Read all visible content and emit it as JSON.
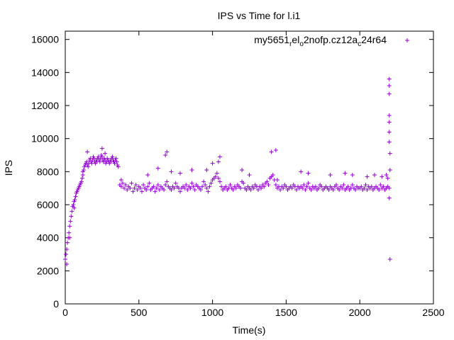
{
  "chart_data": {
    "type": "scatter",
    "title": "IPS vs Time for l.i1",
    "xlabel": "Time(s)",
    "ylabel": "IPS",
    "xlim": [
      0,
      2500
    ],
    "ylim": [
      0,
      16500
    ],
    "xticks": [
      0,
      500,
      1000,
      1500,
      2000,
      2500
    ],
    "yticks": [
      0,
      2000,
      4000,
      6000,
      8000,
      10000,
      12000,
      14000,
      16000
    ],
    "xtick_labels": [
      "0",
      "500",
      "1000",
      "1500",
      "2000",
      "2500"
    ],
    "ytick_labels": [
      "0",
      "2000",
      "4000",
      "6000",
      "8000",
      "10000",
      "12000",
      "14000",
      "16000"
    ],
    "grid": false,
    "legend_position": "top-right",
    "marker": "+",
    "series": [
      {
        "name": "my5651_rel_o2nofp.cz12a_c24r64",
        "legend_parts": [
          "my5651",
          "r",
          "el",
          "o",
          "2nofp.cz12a",
          "c",
          "24r64"
        ],
        "color": "#9400d3",
        "x": [
          0,
          5,
          10,
          15,
          20,
          25,
          30,
          35,
          40,
          45,
          50,
          55,
          60,
          65,
          70,
          75,
          80,
          85,
          90,
          95,
          100,
          105,
          110,
          115,
          120,
          125,
          130,
          135,
          140,
          145,
          150,
          155,
          160,
          165,
          170,
          175,
          180,
          185,
          190,
          195,
          200,
          205,
          210,
          215,
          220,
          225,
          230,
          235,
          240,
          245,
          250,
          255,
          260,
          265,
          270,
          275,
          280,
          285,
          290,
          295,
          300,
          305,
          310,
          315,
          320,
          325,
          330,
          335,
          340,
          345,
          350,
          355,
          360,
          370,
          380,
          390,
          400,
          410,
          420,
          430,
          440,
          450,
          460,
          470,
          480,
          490,
          500,
          510,
          520,
          530,
          540,
          550,
          560,
          570,
          580,
          590,
          600,
          610,
          620,
          630,
          640,
          650,
          660,
          670,
          680,
          690,
          700,
          710,
          720,
          730,
          740,
          750,
          760,
          770,
          780,
          790,
          800,
          810,
          820,
          830,
          840,
          850,
          860,
          870,
          880,
          890,
          900,
          910,
          920,
          930,
          940,
          950,
          960,
          970,
          980,
          990,
          1000,
          1010,
          1020,
          1030,
          1040,
          1050,
          1060,
          1070,
          1080,
          1090,
          1100,
          1110,
          1120,
          1130,
          1140,
          1150,
          1160,
          1170,
          1180,
          1190,
          1200,
          1210,
          1220,
          1230,
          1240,
          1250,
          1260,
          1270,
          1280,
          1290,
          1300,
          1310,
          1320,
          1330,
          1340,
          1350,
          1360,
          1370,
          1380,
          1390,
          1400,
          1410,
          1420,
          1430,
          1440,
          1450,
          1460,
          1470,
          1480,
          1490,
          1500,
          1510,
          1520,
          1530,
          1540,
          1550,
          1560,
          1570,
          1580,
          1590,
          1600,
          1610,
          1620,
          1630,
          1640,
          1650,
          1660,
          1670,
          1680,
          1690,
          1700,
          1710,
          1720,
          1730,
          1740,
          1750,
          1760,
          1770,
          1780,
          1790,
          1800,
          1810,
          1820,
          1830,
          1840,
          1850,
          1860,
          1870,
          1880,
          1890,
          1900,
          1910,
          1920,
          1930,
          1940,
          1950,
          1960,
          1970,
          1980,
          1990,
          2000,
          2010,
          2020,
          2030,
          2040,
          2050,
          2060,
          2070,
          2080,
          2090,
          2100,
          2110,
          2120,
          2130,
          2140,
          2150,
          2160,
          2170,
          2180,
          2190,
          2200,
          10,
          30,
          60,
          120,
          150,
          250,
          270,
          380,
          560,
          630,
          680,
          690,
          720,
          780,
          860,
          960,
          1000,
          1040,
          1050,
          1200,
          1250,
          1400,
          1430,
          1440,
          1600,
          1650,
          1800,
          1900,
          1950,
          2050,
          2100,
          2150,
          2180,
          2190,
          2200,
          2200,
          2200,
          2200,
          2200,
          2200,
          2200,
          2200,
          2205,
          2205,
          2205
        ],
        "y": [
          2700,
          3000,
          3300,
          3700,
          4000,
          4300,
          4700,
          5000,
          5300,
          5600,
          5900,
          6000,
          6200,
          6300,
          6500,
          6700,
          6800,
          6900,
          7000,
          7100,
          7200,
          7300,
          7400,
          7600,
          7800,
          8100,
          8300,
          8400,
          8500,
          8600,
          8400,
          8300,
          8500,
          8700,
          8800,
          8600,
          8500,
          8700,
          8900,
          8800,
          8600,
          8500,
          8700,
          8600,
          8800,
          8900,
          8700,
          8600,
          8800,
          9000,
          8900,
          8700,
          8600,
          8800,
          8700,
          8500,
          8600,
          8800,
          8700,
          8600,
          8500,
          8700,
          8600,
          8800,
          8900,
          8700,
          8600,
          8500,
          8700,
          8800,
          8600,
          8400,
          8300,
          7200,
          7100,
          7300,
          7000,
          7200,
          6900,
          7100,
          7000,
          7300,
          6800,
          7000,
          7200,
          6900,
          7100,
          7000,
          6800,
          7200,
          7000,
          6900,
          7100,
          7300,
          6900,
          7000,
          7100,
          6800,
          7000,
          7200,
          6900,
          7100,
          7000,
          6900,
          7200,
          7400,
          7100,
          7000,
          6900,
          7100,
          7000,
          7300,
          7100,
          7000,
          6800,
          7000,
          7100,
          7000,
          7200,
          6900,
          7100,
          7000,
          7300,
          7100,
          6900,
          7200,
          7100,
          7000,
          6900,
          7100,
          7400,
          7200,
          7000,
          6800,
          7100,
          7300,
          7500,
          7600,
          7700,
          7900,
          7600,
          7400,
          7100,
          6900,
          7000,
          7100,
          6900,
          7000,
          7200,
          7000,
          6900,
          7100,
          7000,
          7200,
          7100,
          7000,
          7400,
          7300,
          7000,
          6900,
          7100,
          7000,
          6900,
          7100,
          7000,
          7200,
          7100,
          6900,
          7100,
          7000,
          7200,
          7100,
          7300,
          7400,
          7200,
          7600,
          7700,
          7800,
          7500,
          7200,
          7000,
          7100,
          6900,
          7100,
          7000,
          7200,
          7100,
          6900,
          7000,
          7100,
          7000,
          7200,
          7100,
          6900,
          7100,
          7000,
          7100,
          7000,
          7200,
          6900,
          7100,
          7300,
          7000,
          6900,
          7100,
          7000,
          7100,
          6900,
          7000,
          7200,
          7100,
          6900,
          7000,
          7100,
          7000,
          6900,
          7100,
          7000,
          6900,
          7100,
          7200,
          7000,
          6900,
          7100,
          7000,
          7200,
          6900,
          7000,
          7100,
          6900,
          7000,
          7200,
          7000,
          6900,
          7100,
          7000,
          7000,
          7100,
          6900,
          7000,
          7200,
          6900,
          7100,
          7000,
          7100,
          6900,
          7000,
          7100,
          7000,
          6900,
          7200,
          7000,
          7100,
          6900,
          7000,
          7100,
          7000,
          2400,
          4000,
          5800,
          8000,
          9200,
          9400,
          9100,
          7500,
          7800,
          8200,
          9000,
          9200,
          8000,
          7900,
          8100,
          8100,
          8500,
          8600,
          8900,
          8100,
          7800,
          9200,
          9300,
          7500,
          8000,
          7900,
          7800,
          7900,
          7800,
          7700,
          7800,
          7700,
          7800,
          7600,
          6400,
          13600,
          13200,
          12700,
          11400,
          11000,
          10400,
          9800,
          9100,
          8100,
          2700
        ]
      }
    ]
  }
}
